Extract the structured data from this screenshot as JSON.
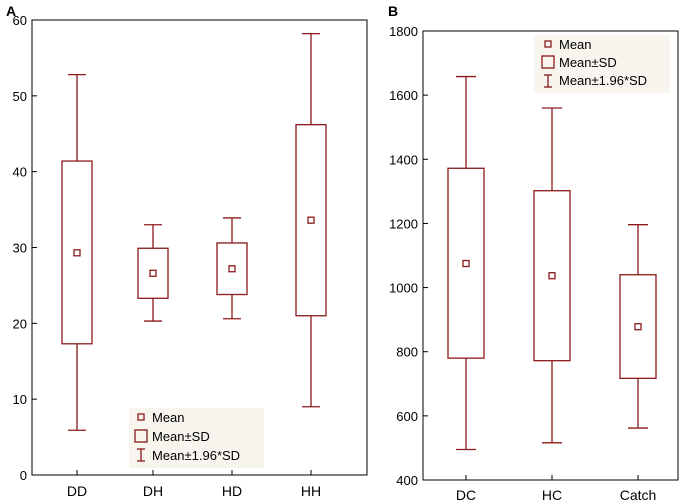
{
  "colors": {
    "box": "#8b1a1a",
    "axis": "#000000",
    "legend_bg": "#f7f5ee"
  },
  "chart_data": [
    {
      "panel": "A",
      "type": "box",
      "categories": [
        "DD",
        "DH",
        "HD",
        "HH"
      ],
      "ylim": [
        0,
        60
      ],
      "yticks": [
        0,
        10,
        20,
        30,
        40,
        50,
        60
      ],
      "grid": false,
      "legend_position": "bottom-center",
      "legend": [
        "Mean",
        "Mean±SD",
        "Mean±1.96*SD"
      ],
      "series": [
        {
          "category": "DD",
          "mean": 29.3,
          "sd_low": 17.3,
          "sd_high": 41.4,
          "ci_low": 5.9,
          "ci_high": 52.8
        },
        {
          "category": "DH",
          "mean": 26.6,
          "sd_low": 23.3,
          "sd_high": 29.9,
          "ci_low": 20.3,
          "ci_high": 33.0
        },
        {
          "category": "HD",
          "mean": 27.2,
          "sd_low": 23.8,
          "sd_high": 30.6,
          "ci_low": 20.6,
          "ci_high": 33.9
        },
        {
          "category": "HH",
          "mean": 33.6,
          "sd_low": 21.0,
          "sd_high": 46.2,
          "ci_low": 9.0,
          "ci_high": 58.2
        }
      ]
    },
    {
      "panel": "B",
      "type": "box",
      "categories": [
        "DC",
        "HC",
        "Catch"
      ],
      "ylim": [
        400,
        1800
      ],
      "yticks": [
        400,
        600,
        800,
        1000,
        1200,
        1400,
        1600,
        1800
      ],
      "grid": false,
      "legend_position": "top-right",
      "legend": [
        "Mean",
        "Mean±SD",
        "Mean±1.96*SD"
      ],
      "series": [
        {
          "category": "DC",
          "mean": 1075,
          "sd_low": 780,
          "sd_high": 1372,
          "ci_low": 495,
          "ci_high": 1658
        },
        {
          "category": "HC",
          "mean": 1037,
          "sd_low": 772,
          "sd_high": 1302,
          "ci_low": 516,
          "ci_high": 1560
        },
        {
          "category": "Catch",
          "mean": 878,
          "sd_low": 717,
          "sd_high": 1040,
          "ci_low": 562,
          "ci_high": 1196
        }
      ]
    }
  ]
}
